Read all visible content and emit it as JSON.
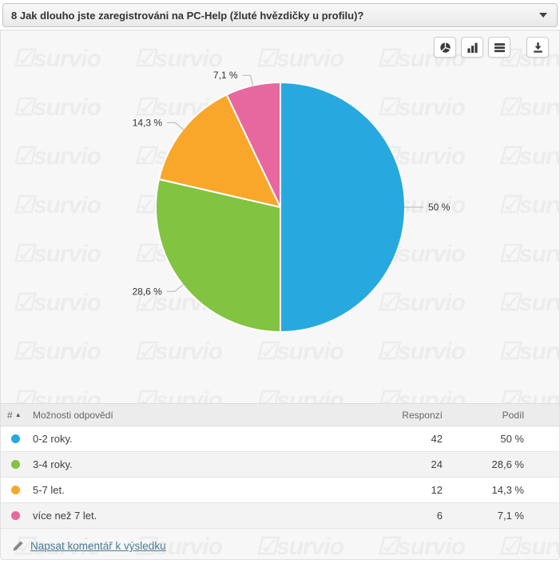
{
  "question_header": {
    "title": "8 Jak dlouho jste zaregistrováni na PC-Help (žluté hvězdičky u profilu)?"
  },
  "toolbar": {
    "buttons": [
      {
        "icon": "pie-chart-icon"
      },
      {
        "icon": "bar-chart-icon"
      },
      {
        "icon": "table-view-icon"
      },
      {
        "icon": "download-icon"
      }
    ]
  },
  "chart_data": {
    "type": "pie",
    "title": "",
    "categories": [
      "0-2 roky.",
      "3-4 roky.",
      "5-7 let.",
      "více než 7 let."
    ],
    "values": [
      42,
      24,
      12,
      6
    ],
    "percentages": [
      50,
      28.6,
      14.3,
      7.1
    ],
    "percent_labels": [
      "50 %",
      "28,6 %",
      "14,3 %",
      "7,1 %"
    ],
    "colors": [
      "#27A9E0",
      "#82C341",
      "#F9A72B",
      "#E7679F"
    ],
    "start_angle_deg": 0,
    "direction": "clockwise",
    "legend_position": "table-below"
  },
  "table": {
    "headers": {
      "index": "#",
      "sort_indicator": "▲",
      "options": "Možnosti odpovědí",
      "responses": "Responzí",
      "share": "Podíl"
    },
    "rows": [
      {
        "color": "#27A9E0",
        "label": "0-2 roky.",
        "responses": "42",
        "share": "50 %"
      },
      {
        "color": "#82C341",
        "label": "3-4 roky.",
        "responses": "24",
        "share": "28,6 %"
      },
      {
        "color": "#F9A72B",
        "label": "5-7 let.",
        "responses": "12",
        "share": "14,3 %"
      },
      {
        "color": "#E7679F",
        "label": "více než 7 let.",
        "responses": "6",
        "share": "7,1 %"
      }
    ]
  },
  "comment": {
    "label": "Napsat komentář k výsledku"
  },
  "watermark": {
    "logo_glyph": "☑",
    "text": "survio"
  }
}
